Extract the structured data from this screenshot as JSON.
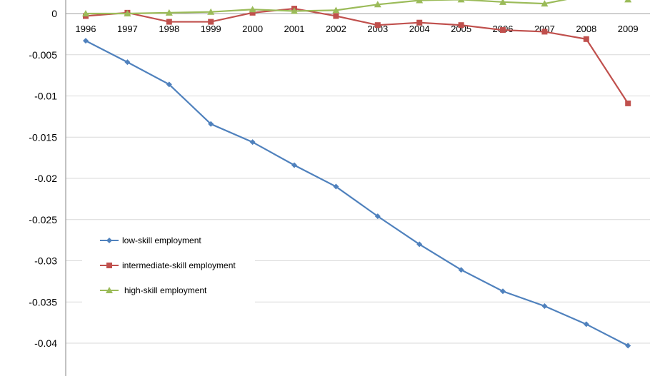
{
  "chart_data": {
    "type": "line",
    "title": "",
    "xlabel": "",
    "ylabel": "",
    "x": [
      "1996",
      "1997",
      "1998",
      "1999",
      "2000",
      "2001",
      "2002",
      "2003",
      "2004",
      "2005",
      "2006",
      "2007",
      "2008",
      "2009"
    ],
    "yticks": [
      0,
      -0.005,
      -0.01,
      -0.015,
      -0.02,
      -0.025,
      -0.03,
      -0.035,
      -0.04
    ],
    "ytick_labels": [
      "0",
      "-0.005",
      "-0.01",
      "-0.015",
      "-0.02",
      "-0.025",
      "-0.03",
      "-0.035",
      "-0.04"
    ],
    "ylim": [
      -0.0445,
      0.0017
    ],
    "grid": true,
    "legend_position": "bottom-left",
    "series": [
      {
        "name": "low-skill employment",
        "color": "#4F81BD",
        "marker": "diamond",
        "values": [
          -0.0033,
          -0.0059,
          -0.0086,
          -0.0134,
          -0.0156,
          -0.0184,
          -0.021,
          -0.0246,
          -0.028,
          -0.0311,
          -0.0337,
          -0.0355,
          -0.0377,
          -0.0403
        ]
      },
      {
        "name": "intermediate-skill employment",
        "color": "#C0504D",
        "marker": "square",
        "values": [
          -0.0003,
          0.0001,
          -0.001,
          -0.001,
          0.0001,
          0.0006,
          -0.0003,
          -0.0014,
          -0.0011,
          -0.0014,
          -0.002,
          -0.0022,
          -0.0031,
          -0.0109
        ]
      },
      {
        "name": "high-skill employment",
        "color": "#9BBB59",
        "marker": "triangle",
        "values": [
          0.0,
          0.0,
          0.0001,
          0.0002,
          0.0005,
          0.0003,
          0.0004,
          0.0011,
          0.0016,
          0.0017,
          0.0014,
          0.0012,
          0.0022,
          0.0017
        ]
      }
    ]
  }
}
